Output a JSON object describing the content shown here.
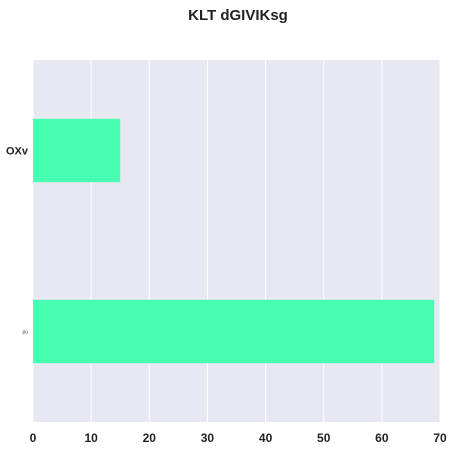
{
  "chart_data": {
    "type": "bar",
    "orientation": "horizontal",
    "title": "KLT dGIVIKsg",
    "categories": [
      "OXv",
      "pü"
    ],
    "values": [
      15,
      69
    ],
    "xlabel": "",
    "ylabel": "",
    "xlim": [
      0,
      70
    ],
    "xticks": [
      0,
      10,
      20,
      30,
      40,
      50,
      60,
      70
    ],
    "grid": true,
    "legend": "none",
    "colors": {
      "bar": "#47ffb0",
      "plot_background": "#e8e8f2",
      "gridline": "#ffffff",
      "text": "#222222"
    }
  }
}
